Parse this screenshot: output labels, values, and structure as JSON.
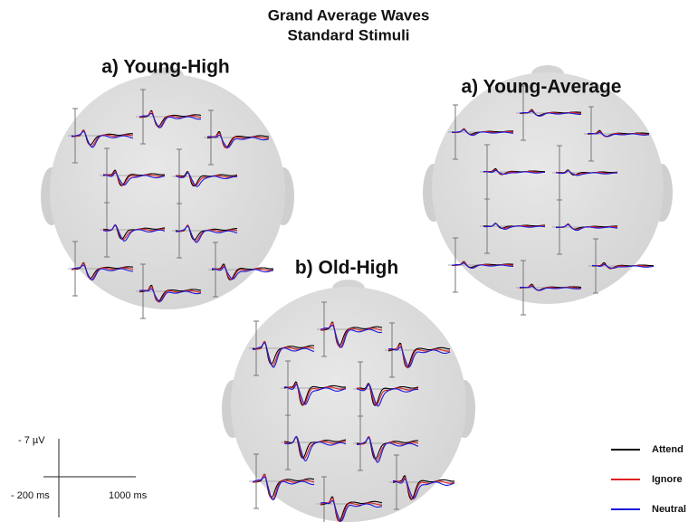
{
  "title": {
    "line1": "Grand Average Waves",
    "line2": "Standard Stimuli"
  },
  "panels": [
    {
      "label": "a) Young-High"
    },
    {
      "label": "a) Young-Average"
    },
    {
      "label": "b) Old-High"
    }
  ],
  "scale": {
    "y_label": "- 7 µV",
    "x_start": "- 200 ms",
    "x_end": "1000 ms"
  },
  "legend": [
    {
      "name": "Attend",
      "color": "#000000"
    },
    {
      "name": "Ignore",
      "color": "#e02020"
    },
    {
      "name": "Neutral",
      "color": "#1a1adb"
    }
  ]
}
